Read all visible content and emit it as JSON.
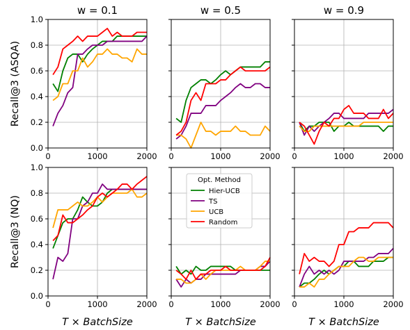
{
  "figure": {
    "col_titles": [
      "w = 0.1",
      "w = 0.5",
      "w = 0.9"
    ],
    "row_ylabels": [
      "Recall@3 (ASQA)",
      "Recall@3 (NQ)"
    ],
    "xlabel": "T × BatchSize"
  },
  "legend": {
    "title": "Opt. Method",
    "placement": "in bottom-middle panel, upper area",
    "entries": [
      {
        "name": "Hier-UCB",
        "color": "#008000"
      },
      {
        "name": "TS",
        "color": "#800080"
      },
      {
        "name": "UCB",
        "color": "#FFA500"
      },
      {
        "name": "Random",
        "color": "#FF0000"
      }
    ]
  },
  "chart_data": [
    {
      "type": "line",
      "panel": "ASQA, w = 0.1",
      "xlim": [
        0,
        2000
      ],
      "ylim": [
        0,
        1
      ],
      "xticks": [
        0,
        1000,
        2000
      ],
      "yticks": [
        0.0,
        0.2,
        0.4,
        0.6,
        0.8,
        1.0
      ],
      "grid": true,
      "x": [
        100,
        200,
        300,
        400,
        500,
        600,
        700,
        800,
        900,
        1000,
        1100,
        1200,
        1300,
        1400,
        1500,
        1600,
        1700,
        1800,
        1900,
        2000
      ],
      "series": [
        {
          "name": "Hier-UCB",
          "values": [
            0.5,
            0.44,
            0.6,
            0.7,
            0.73,
            0.73,
            0.67,
            0.73,
            0.77,
            0.8,
            0.83,
            0.83,
            0.83,
            0.87,
            0.87,
            0.87,
            0.87,
            0.87,
            0.87,
            0.87
          ]
        },
        {
          "name": "TS",
          "values": [
            0.17,
            0.27,
            0.33,
            0.43,
            0.47,
            0.73,
            0.73,
            0.77,
            0.8,
            0.8,
            0.8,
            0.83,
            0.83,
            0.83,
            0.83,
            0.83,
            0.83,
            0.83,
            0.83,
            0.87
          ]
        },
        {
          "name": "UCB",
          "values": [
            0.37,
            0.4,
            0.5,
            0.5,
            0.6,
            0.6,
            0.7,
            0.63,
            0.67,
            0.73,
            0.73,
            0.77,
            0.73,
            0.73,
            0.7,
            0.7,
            0.67,
            0.77,
            0.73,
            0.73
          ]
        },
        {
          "name": "Random",
          "values": [
            0.57,
            0.63,
            0.77,
            0.8,
            0.83,
            0.87,
            0.83,
            0.87,
            0.87,
            0.87,
            0.9,
            0.93,
            0.87,
            0.9,
            0.87,
            0.87,
            0.87,
            0.9,
            0.9,
            0.9
          ]
        }
      ]
    },
    {
      "type": "line",
      "panel": "ASQA, w = 0.5",
      "xlim": [
        0,
        2000
      ],
      "ylim": [
        0,
        1
      ],
      "xticks": [
        0,
        1000,
        2000
      ],
      "yticks": [
        0.0,
        0.2,
        0.4,
        0.6,
        0.8,
        1.0
      ],
      "grid": true,
      "x": [
        100,
        200,
        300,
        400,
        500,
        600,
        700,
        800,
        900,
        1000,
        1100,
        1200,
        1300,
        1400,
        1500,
        1600,
        1700,
        1800,
        1900,
        2000
      ],
      "series": [
        {
          "name": "Hier-UCB",
          "values": [
            0.23,
            0.2,
            0.37,
            0.47,
            0.5,
            0.53,
            0.53,
            0.5,
            0.53,
            0.57,
            0.6,
            0.57,
            0.6,
            0.63,
            0.63,
            0.63,
            0.63,
            0.63,
            0.67,
            0.67
          ]
        },
        {
          "name": "TS",
          "values": [
            0.07,
            0.1,
            0.17,
            0.27,
            0.27,
            0.27,
            0.33,
            0.33,
            0.33,
            0.37,
            0.4,
            0.43,
            0.47,
            0.5,
            0.47,
            0.47,
            0.5,
            0.5,
            0.47,
            0.47
          ]
        },
        {
          "name": "UCB",
          "values": [
            0.1,
            0.1,
            0.07,
            0.0,
            0.1,
            0.2,
            0.13,
            0.13,
            0.1,
            0.13,
            0.13,
            0.13,
            0.17,
            0.13,
            0.13,
            0.1,
            0.1,
            0.1,
            0.17,
            0.13
          ]
        },
        {
          "name": "Random",
          "values": [
            0.1,
            0.13,
            0.2,
            0.37,
            0.43,
            0.37,
            0.5,
            0.5,
            0.5,
            0.53,
            0.53,
            0.57,
            0.6,
            0.63,
            0.6,
            0.6,
            0.6,
            0.6,
            0.6,
            0.63
          ]
        }
      ]
    },
    {
      "type": "line",
      "panel": "ASQA, w = 0.9",
      "xlim": [
        0,
        2000
      ],
      "ylim": [
        0,
        1
      ],
      "xticks": [
        0,
        1000,
        2000
      ],
      "yticks": [
        0.0,
        0.2,
        0.4,
        0.6,
        0.8,
        1.0
      ],
      "grid": true,
      "x": [
        100,
        200,
        300,
        400,
        500,
        600,
        700,
        800,
        900,
        1000,
        1100,
        1200,
        1300,
        1400,
        1500,
        1600,
        1700,
        1800,
        1900,
        2000
      ],
      "series": [
        {
          "name": "Hier-UCB",
          "values": [
            0.2,
            0.13,
            0.17,
            0.17,
            0.2,
            0.2,
            0.2,
            0.13,
            0.17,
            0.17,
            0.2,
            0.17,
            0.17,
            0.17,
            0.17,
            0.17,
            0.17,
            0.13,
            0.17,
            0.17
          ]
        },
        {
          "name": "TS",
          "values": [
            0.2,
            0.1,
            0.17,
            0.13,
            0.17,
            0.2,
            0.23,
            0.27,
            0.27,
            0.23,
            0.23,
            0.23,
            0.23,
            0.23,
            0.27,
            0.27,
            0.27,
            0.27,
            0.27,
            0.3
          ]
        },
        {
          "name": "UCB",
          "values": [
            0.17,
            0.13,
            0.13,
            0.17,
            0.17,
            0.17,
            0.17,
            0.17,
            0.17,
            0.17,
            0.17,
            0.17,
            0.17,
            0.2,
            0.2,
            0.2,
            0.2,
            0.2,
            0.2,
            0.2
          ]
        },
        {
          "name": "Random",
          "values": [
            0.2,
            0.17,
            0.1,
            0.03,
            0.13,
            0.2,
            0.17,
            0.23,
            0.23,
            0.3,
            0.33,
            0.27,
            0.27,
            0.27,
            0.23,
            0.23,
            0.23,
            0.3,
            0.23,
            0.27
          ]
        }
      ]
    },
    {
      "type": "line",
      "panel": "NQ, w = 0.1",
      "xlim": [
        0,
        2000
      ],
      "ylim": [
        0,
        1
      ],
      "xticks": [
        0,
        1000,
        2000
      ],
      "yticks": [
        0.0,
        0.2,
        0.4,
        0.6,
        0.8,
        1.0
      ],
      "grid": true,
      "x": [
        100,
        200,
        300,
        400,
        500,
        600,
        700,
        800,
        900,
        1000,
        1100,
        1200,
        1300,
        1400,
        1500,
        1600,
        1700,
        1800,
        1900,
        2000
      ],
      "series": [
        {
          "name": "Hier-UCB",
          "values": [
            0.37,
            0.47,
            0.57,
            0.6,
            0.6,
            0.67,
            0.77,
            0.73,
            0.7,
            0.7,
            0.73,
            0.8,
            0.83,
            0.83,
            0.83,
            0.83,
            0.83,
            0.83,
            0.83,
            0.83
          ]
        },
        {
          "name": "TS",
          "values": [
            0.13,
            0.3,
            0.27,
            0.33,
            0.6,
            0.6,
            0.7,
            0.73,
            0.8,
            0.8,
            0.87,
            0.83,
            0.83,
            0.83,
            0.83,
            0.83,
            0.83,
            0.83,
            0.83,
            0.83
          ]
        },
        {
          "name": "UCB",
          "values": [
            0.53,
            0.67,
            0.67,
            0.67,
            0.7,
            0.73,
            0.7,
            0.7,
            0.73,
            0.77,
            0.73,
            0.77,
            0.8,
            0.8,
            0.8,
            0.8,
            0.83,
            0.77,
            0.77,
            0.8
          ]
        },
        {
          "name": "Random",
          "values": [
            0.43,
            0.47,
            0.63,
            0.57,
            0.57,
            0.6,
            0.63,
            0.67,
            0.7,
            0.77,
            0.8,
            0.77,
            0.8,
            0.83,
            0.87,
            0.87,
            0.83,
            0.87,
            0.9,
            0.93
          ]
        }
      ]
    },
    {
      "type": "line",
      "panel": "NQ, w = 0.5",
      "xlim": [
        0,
        2000
      ],
      "ylim": [
        0,
        1
      ],
      "xticks": [
        0,
        1000,
        2000
      ],
      "yticks": [
        0.0,
        0.2,
        0.4,
        0.6,
        0.8,
        1.0
      ],
      "grid": true,
      "x": [
        100,
        200,
        300,
        400,
        500,
        600,
        700,
        800,
        900,
        1000,
        1100,
        1200,
        1300,
        1400,
        1500,
        1600,
        1700,
        1800,
        1900,
        2000
      ],
      "series": [
        {
          "name": "Hier-UCB",
          "values": [
            0.23,
            0.17,
            0.2,
            0.17,
            0.23,
            0.2,
            0.2,
            0.23,
            0.23,
            0.23,
            0.23,
            0.23,
            0.2,
            0.2,
            0.2,
            0.2,
            0.2,
            0.2,
            0.2,
            0.2
          ]
        },
        {
          "name": "TS",
          "values": [
            0.13,
            0.07,
            0.13,
            0.1,
            0.13,
            0.13,
            0.17,
            0.17,
            0.17,
            0.17,
            0.17,
            0.17,
            0.17,
            0.2,
            0.2,
            0.2,
            0.2,
            0.23,
            0.23,
            0.27
          ]
        },
        {
          "name": "UCB",
          "values": [
            0.13,
            0.13,
            0.1,
            0.1,
            0.13,
            0.17,
            0.13,
            0.17,
            0.2,
            0.2,
            0.2,
            0.2,
            0.2,
            0.23,
            0.2,
            0.2,
            0.2,
            0.23,
            0.27,
            0.27
          ]
        },
        {
          "name": "Random",
          "values": [
            0.2,
            0.17,
            0.13,
            0.2,
            0.13,
            0.17,
            0.17,
            0.2,
            0.2,
            0.2,
            0.23,
            0.2,
            0.2,
            0.2,
            0.2,
            0.2,
            0.2,
            0.2,
            0.23,
            0.3
          ]
        }
      ]
    },
    {
      "type": "line",
      "panel": "NQ, w = 0.9",
      "xlim": [
        0,
        2000
      ],
      "ylim": [
        0,
        1
      ],
      "xticks": [
        0,
        1000,
        2000
      ],
      "yticks": [
        0.0,
        0.2,
        0.4,
        0.6,
        0.8,
        1.0
      ],
      "grid": true,
      "x": [
        100,
        200,
        300,
        400,
        500,
        600,
        700,
        800,
        900,
        1000,
        1100,
        1200,
        1300,
        1400,
        1500,
        1600,
        1700,
        1800,
        1900,
        2000
      ],
      "series": [
        {
          "name": "Hier-UCB",
          "values": [
            0.07,
            0.1,
            0.1,
            0.13,
            0.17,
            0.2,
            0.17,
            0.2,
            0.23,
            0.23,
            0.27,
            0.27,
            0.23,
            0.23,
            0.23,
            0.27,
            0.27,
            0.27,
            0.3,
            0.3
          ]
        },
        {
          "name": "TS",
          "values": [
            0.07,
            0.17,
            0.23,
            0.17,
            0.2,
            0.17,
            0.2,
            0.17,
            0.2,
            0.27,
            0.27,
            0.27,
            0.27,
            0.27,
            0.3,
            0.3,
            0.33,
            0.33,
            0.33,
            0.37
          ]
        },
        {
          "name": "UCB",
          "values": [
            0.07,
            0.07,
            0.1,
            0.07,
            0.13,
            0.13,
            0.17,
            0.2,
            0.23,
            0.23,
            0.23,
            0.27,
            0.3,
            0.3,
            0.27,
            0.27,
            0.3,
            0.3,
            0.3,
            0.3
          ]
        },
        {
          "name": "Random",
          "values": [
            0.17,
            0.33,
            0.27,
            0.3,
            0.27,
            0.27,
            0.23,
            0.27,
            0.4,
            0.4,
            0.5,
            0.5,
            0.53,
            0.53,
            0.53,
            0.57,
            0.57,
            0.57,
            0.57,
            0.53
          ]
        }
      ]
    }
  ]
}
